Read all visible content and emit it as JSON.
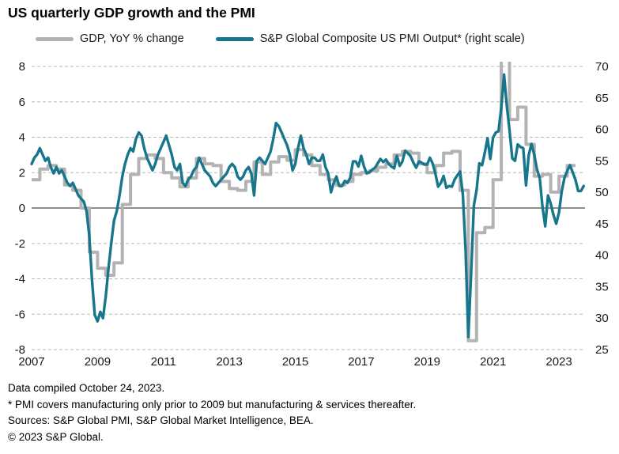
{
  "header": {
    "title": "US quarterly GDP growth and the PMI"
  },
  "legend": [
    {
      "label": "GDP, YoY % change",
      "color": "#b3b3b3"
    },
    {
      "label": "S&P Global Composite US PMI Output* (right scale)",
      "color": "#17768b"
    }
  ],
  "footnotes": {
    "compiled": "Data compiled October 24, 2023.",
    "pmi_note": "* PMI covers manufacturing only prior to 2009 but manufacturing & services thereafter.",
    "sources": "Sources: S&P Global PMI, S&P Global Market Intelligence, BEA.",
    "copyright": "© 2023 S&P Global."
  },
  "colors": {
    "gdp_line": "#b3b3b3",
    "pmi_line": "#17768b",
    "gridline": "#b8b8b8",
    "zero_line": "#4a4a4a",
    "axis_text": "#1a1a1a"
  },
  "chart_data": {
    "type": "line",
    "title": "US quarterly GDP growth and the PMI",
    "grid": "horizontal dashed, solid line at left-axis 0",
    "legend_position": "top",
    "x_axis": {
      "min": 2007,
      "max": 2023.79,
      "tick_years": [
        2007,
        2009,
        2011,
        2013,
        2015,
        2017,
        2019,
        2021,
        2023
      ]
    },
    "left_axis": {
      "label": "GDP, YoY % change",
      "min": -8,
      "max": 8,
      "ticks": [
        8,
        6,
        4,
        2,
        0,
        -2,
        -4,
        -6,
        -8
      ]
    },
    "right_axis": {
      "label": "S&P Global Composite US PMI Output",
      "min": 25,
      "max": 70,
      "ticks": [
        70,
        65,
        60,
        55,
        50,
        45,
        40,
        35,
        30,
        25
      ]
    },
    "series": [
      {
        "name": "GDP, YoY % change",
        "axis": "left",
        "color": "#b3b3b3",
        "line_style": "step",
        "frequency": "quarterly",
        "start": "2007Q1",
        "end": "2023Q2",
        "values": [
          1.6,
          2.2,
          2.4,
          2.2,
          1.3,
          1.0,
          0.0,
          -2.5,
          -3.4,
          -3.8,
          -3.1,
          0.2,
          1.9,
          2.8,
          3.0,
          2.8,
          2.0,
          1.7,
          1.2,
          1.7,
          2.8,
          2.5,
          2.4,
          1.5,
          1.1,
          1.0,
          1.5,
          2.6,
          1.9,
          2.6,
          2.9,
          2.7,
          3.3,
          3.0,
          2.4,
          1.9,
          1.6,
          1.3,
          1.5,
          1.9,
          2.0,
          2.1,
          2.3,
          2.5,
          3.0,
          3.2,
          3.1,
          2.5,
          2.0,
          2.4,
          3.1,
          3.2,
          1.0,
          -7.5,
          -1.4,
          -1.1,
          1.6,
          12.2,
          5.0,
          5.7,
          3.6,
          1.8,
          1.9,
          0.9,
          1.8,
          2.4
        ]
      },
      {
        "name": "S&P Global Composite US PMI Output* (right scale)",
        "axis": "right",
        "color": "#17768b",
        "line_style": "line",
        "frequency": "monthly",
        "start": "2007-01",
        "end": "2023-10",
        "values": [
          54.5,
          55.5,
          56.0,
          57.0,
          56.0,
          55.0,
          55.5,
          54.0,
          53.0,
          54.0,
          53.0,
          53.5,
          52.5,
          51.5,
          51.0,
          51.5,
          50.5,
          49.5,
          49.0,
          48.5,
          47.0,
          43.0,
          36.0,
          30.5,
          29.5,
          31.0,
          30.0,
          33.5,
          38.0,
          42.0,
          45.5,
          47.0,
          49.5,
          52.5,
          54.5,
          56.0,
          57.0,
          56.5,
          58.5,
          59.5,
          59.0,
          57.0,
          55.5,
          54.5,
          53.5,
          54.5,
          56.0,
          57.0,
          58.0,
          59.0,
          57.5,
          56.0,
          54.0,
          53.5,
          54.5,
          51.5,
          51.0,
          52.0,
          52.5,
          53.5,
          54.0,
          55.5,
          54.5,
          53.5,
          53.0,
          52.5,
          51.5,
          51.0,
          51.5,
          52.0,
          52.5,
          53.0,
          54.0,
          54.5,
          54.0,
          52.5,
          52.0,
          52.5,
          53.5,
          54.0,
          53.0,
          49.5,
          55.0,
          55.5,
          55.0,
          54.5,
          55.5,
          56.5,
          58.5,
          61.0,
          60.5,
          59.5,
          58.5,
          57.5,
          56.0,
          53.5,
          54.5,
          57.0,
          59.0,
          57.0,
          56.0,
          54.5,
          55.5,
          55.5,
          55.0,
          55.0,
          56.0,
          54.0,
          53.0,
          50.0,
          51.5,
          52.5,
          51.0,
          51.0,
          51.8,
          51.5,
          52.3,
          54.9,
          54.9,
          54.1,
          55.8,
          54.1,
          53.0,
          53.2,
          53.6,
          53.9,
          54.6,
          55.3,
          54.8,
          55.2,
          54.5,
          54.1,
          53.8,
          55.8,
          54.2,
          54.9,
          56.6,
          56.2,
          55.7,
          54.7,
          53.9,
          54.9,
          54.7,
          54.4,
          54.4,
          55.5,
          54.6,
          53.0,
          50.9,
          51.5,
          52.6,
          50.7,
          51.0,
          50.9,
          52.0,
          52.7,
          53.3,
          49.6,
          40.9,
          27.0,
          37.0,
          47.9,
          50.3,
          54.6,
          54.3,
          56.3,
          58.6,
          55.3,
          58.7,
          59.5,
          59.7,
          63.5,
          68.7,
          63.7,
          59.9,
          55.4,
          55.0,
          57.6,
          57.2,
          57.0,
          51.1,
          55.9,
          57.7,
          56.0,
          53.6,
          52.3,
          47.7,
          44.6,
          49.5,
          48.2,
          46.4,
          45.0,
          46.8,
          50.1,
          52.3,
          53.4,
          54.3,
          53.2,
          52.0,
          50.2,
          50.2,
          51.0
        ]
      }
    ]
  }
}
